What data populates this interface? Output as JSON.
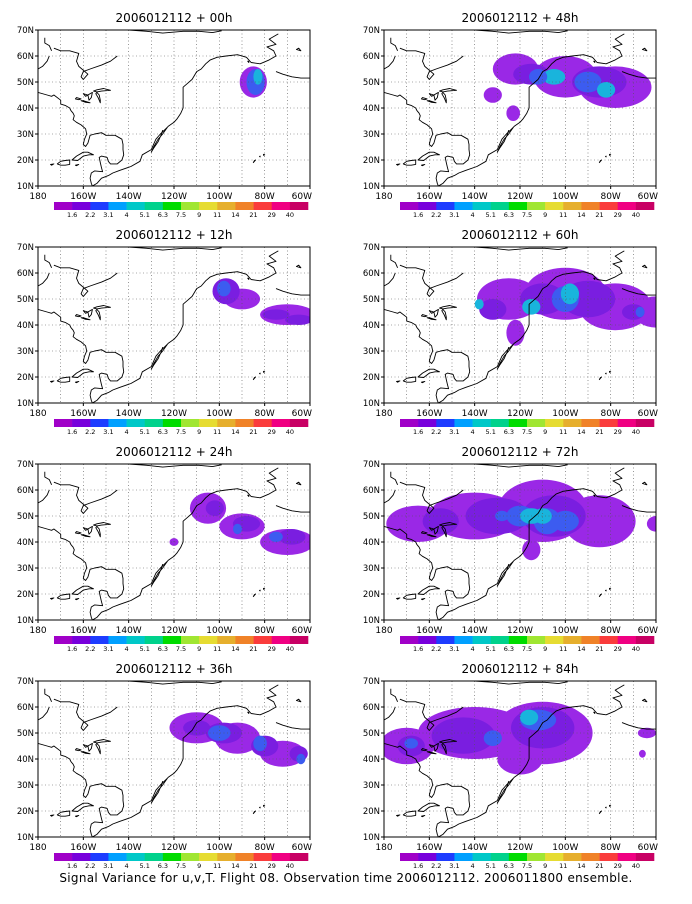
{
  "figure": {
    "caption": "Signal Variance for u,v,T. Flight 08. Observation time 2006012112. 2006011800 ensemble."
  },
  "axes": {
    "lat_ticks": [
      "70N",
      "60N",
      "50N",
      "40N",
      "30N",
      "20N",
      "10N"
    ],
    "lon_ticks": [
      "180",
      "160W",
      "140W",
      "120W",
      "100W",
      "80W",
      "60W"
    ]
  },
  "colorbar": {
    "labels": [
      "1.6",
      "2.2",
      "3.1",
      "4",
      "5.1",
      "6.3",
      "7.5",
      "9",
      "11",
      "14",
      "21",
      "29",
      "40"
    ],
    "colors": [
      "#a000c8",
      "#7800dc",
      "#1e3cff",
      "#00a0ff",
      "#00c8c8",
      "#00d28c",
      "#00dc00",
      "#a0e632",
      "#e6dc32",
      "#e6af2d",
      "#f08228",
      "#fa3c3c",
      "#f00082",
      "#c80064"
    ]
  },
  "panels": [
    {
      "title": "2006012112 + 00h",
      "lead_hours": 0
    },
    {
      "title": "2006012112 + 48h",
      "lead_hours": 48
    },
    {
      "title": "2006012112 + 12h",
      "lead_hours": 12
    },
    {
      "title": "2006012112 + 60h",
      "lead_hours": 60
    },
    {
      "title": "2006012112 + 24h",
      "lead_hours": 24
    },
    {
      "title": "2006012112 + 72h",
      "lead_hours": 72
    },
    {
      "title": "2006012112 + 36h",
      "lead_hours": 36
    },
    {
      "title": "2006012112 + 84h",
      "lead_hours": 84
    }
  ],
  "map": {
    "projection": "lat-lon",
    "lon_range": [
      180,
      300
    ],
    "lat_range": [
      10,
      70
    ],
    "grid": "dotted",
    "plume_colors": [
      "#9a28e6",
      "#7a1ee0",
      "#3c5cf0",
      "#19b4dc"
    ],
    "blobs": {
      "0": [
        [
          155,
          50,
          6,
          6,
          0
        ],
        [
          156,
          50,
          4,
          5,
          2
        ],
        [
          157,
          52,
          2,
          3,
          3
        ]
      ],
      "12": [
        [
          170,
          44,
          12,
          4,
          0
        ],
        [
          150,
          50,
          8,
          4,
          0
        ],
        [
          143,
          53,
          6,
          5,
          1
        ],
        [
          142,
          54,
          3,
          3,
          2
        ],
        [
          165,
          44,
          6,
          2,
          1
        ],
        [
          175,
          42,
          6,
          2,
          1
        ]
      ],
      "24": [
        [
          170,
          40,
          12,
          5,
          0
        ],
        [
          150,
          46,
          10,
          5,
          0
        ],
        [
          135,
          53,
          8,
          6,
          0
        ],
        [
          172,
          42,
          6,
          3,
          1
        ],
        [
          152,
          47,
          6,
          3,
          1
        ],
        [
          138,
          53,
          4,
          3,
          1
        ],
        [
          148,
          45,
          2,
          2,
          2
        ],
        [
          165,
          42,
          3,
          2,
          2
        ],
        [
          120,
          40,
          2,
          1.5,
          0
        ]
      ],
      "36": [
        [
          168,
          42,
          10,
          5,
          0
        ],
        [
          148,
          48,
          10,
          6,
          0
        ],
        [
          130,
          52,
          12,
          6,
          0
        ],
        [
          160,
          45,
          6,
          4,
          1
        ],
        [
          142,
          50,
          8,
          4,
          1
        ],
        [
          130,
          52,
          6,
          3,
          1
        ],
        [
          158,
          46,
          3,
          3,
          2
        ],
        [
          140,
          50,
          5,
          3,
          2
        ],
        [
          175,
          42,
          4,
          3,
          1
        ],
        [
          176,
          40,
          2,
          2,
          2
        ]
      ],
      "48": [
        [
          162,
          48,
          16,
          8,
          0
        ],
        [
          140,
          52,
          14,
          8,
          0
        ],
        [
          118,
          55,
          10,
          6,
          0
        ],
        [
          155,
          50,
          12,
          6,
          1
        ],
        [
          125,
          53,
          8,
          4,
          1
        ],
        [
          150,
          50,
          6,
          4,
          2
        ],
        [
          158,
          47,
          4,
          3,
          3
        ],
        [
          135,
          52,
          5,
          3,
          3
        ],
        [
          128,
          52,
          4,
          3,
          2
        ],
        [
          117,
          38,
          3,
          3,
          0
        ],
        [
          108,
          45,
          4,
          3,
          0
        ]
      ],
      "60": [
        [
          180,
          45,
          10,
          6,
          0
        ],
        [
          162,
          47,
          16,
          9,
          0
        ],
        [
          140,
          52,
          18,
          10,
          0
        ],
        [
          115,
          50,
          14,
          8,
          0
        ],
        [
          118,
          37,
          4,
          5,
          0
        ],
        [
          150,
          50,
          12,
          7,
          1
        ],
        [
          130,
          50,
          10,
          6,
          1
        ],
        [
          108,
          46,
          6,
          4,
          1
        ],
        [
          140,
          50,
          6,
          5,
          2
        ],
        [
          142,
          52,
          4,
          4,
          3
        ],
        [
          125,
          47,
          4,
          3,
          3
        ],
        [
          170,
          45,
          5,
          3,
          1
        ],
        [
          173,
          45,
          2,
          2,
          2
        ],
        [
          102,
          48,
          2,
          2,
          3
        ]
      ],
      "72": [
        [
          180,
          47,
          4,
          3,
          0
        ],
        [
          155,
          48,
          16,
          10,
          0
        ],
        [
          130,
          52,
          20,
          12,
          0
        ],
        [
          100,
          50,
          20,
          9,
          0
        ],
        [
          75,
          47,
          14,
          7,
          0
        ],
        [
          125,
          37,
          4,
          4,
          0
        ],
        [
          135,
          50,
          14,
          8,
          1
        ],
        [
          110,
          50,
          14,
          7,
          1
        ],
        [
          85,
          48,
          8,
          5,
          1
        ],
        [
          140,
          48,
          6,
          4,
          2
        ],
        [
          132,
          48,
          6,
          5,
          2
        ],
        [
          120,
          50,
          6,
          4,
          2
        ],
        [
          125,
          50,
          5,
          3,
          3
        ],
        [
          130,
          50,
          4,
          3,
          3
        ],
        [
          112,
          50,
          3,
          2,
          2
        ]
      ],
      "84": [
        [
          176,
          50,
          4,
          2,
          0
        ],
        [
          174,
          42,
          1.5,
          1.5,
          0
        ],
        [
          130,
          50,
          22,
          12,
          0
        ],
        [
          100,
          50,
          25,
          10,
          0
        ],
        [
          70,
          45,
          12,
          7,
          0
        ],
        [
          120,
          40,
          10,
          6,
          0
        ],
        [
          130,
          52,
          14,
          8,
          1
        ],
        [
          95,
          49,
          14,
          7,
          1
        ],
        [
          72,
          45,
          6,
          4,
          1
        ],
        [
          128,
          55,
          8,
          4,
          2
        ],
        [
          124,
          56,
          4,
          3,
          3
        ],
        [
          108,
          48,
          4,
          3,
          2
        ],
        [
          72,
          46,
          3,
          2,
          2
        ]
      ]
    }
  }
}
